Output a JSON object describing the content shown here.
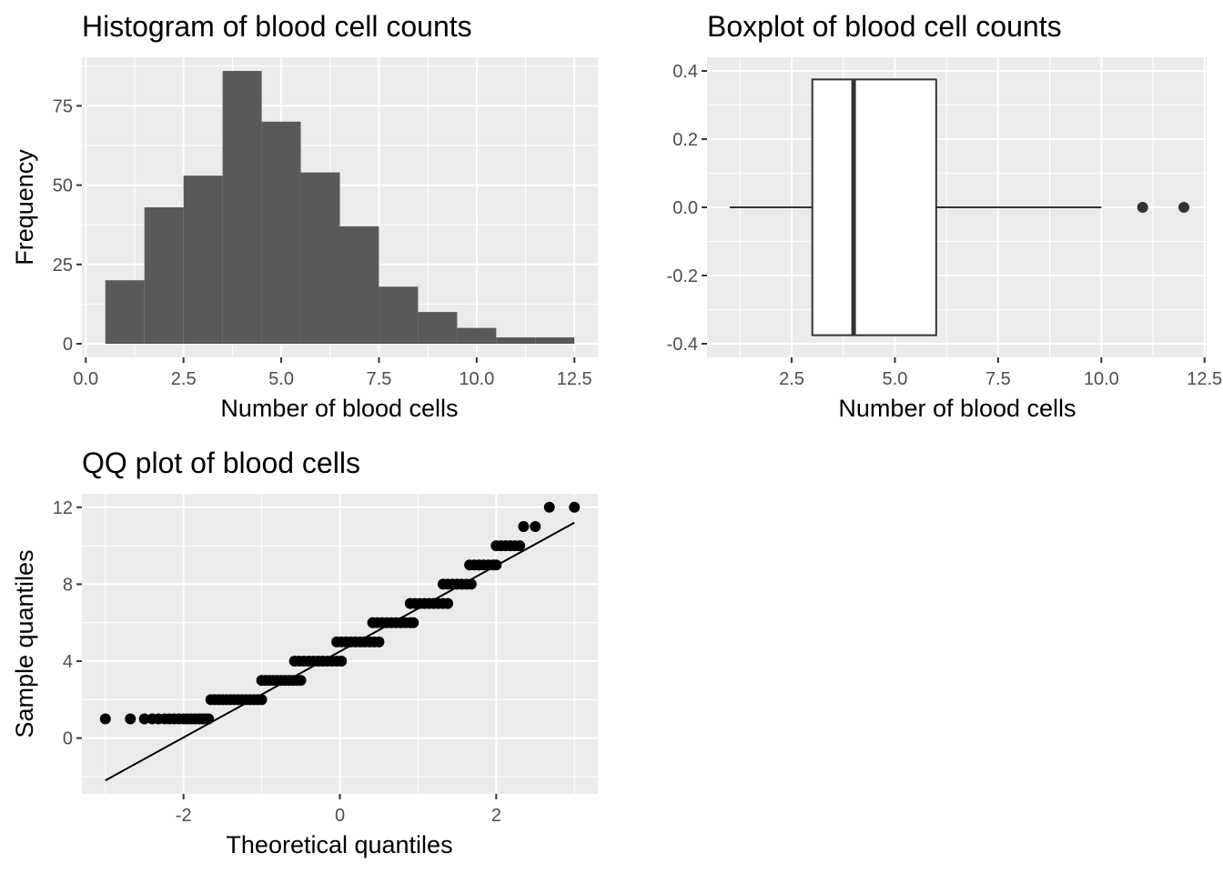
{
  "chart_data": [
    {
      "type": "bar",
      "title": "Histogram of blood cell counts",
      "xlabel": "Number of blood cells",
      "ylabel": "Frequency",
      "bins": [
        {
          "x0": 0.5,
          "x1": 1.5,
          "count": 20
        },
        {
          "x0": 1.5,
          "x1": 2.5,
          "count": 43
        },
        {
          "x0": 2.5,
          "x1": 3.5,
          "count": 53
        },
        {
          "x0": 3.5,
          "x1": 4.5,
          "count": 86
        },
        {
          "x0": 4.5,
          "x1": 5.5,
          "count": 70
        },
        {
          "x0": 5.5,
          "x1": 6.5,
          "count": 54
        },
        {
          "x0": 6.5,
          "x1": 7.5,
          "count": 37
        },
        {
          "x0": 7.5,
          "x1": 8.5,
          "count": 18
        },
        {
          "x0": 8.5,
          "x1": 9.5,
          "count": 10
        },
        {
          "x0": 9.5,
          "x1": 10.5,
          "count": 5
        },
        {
          "x0": 10.5,
          "x1": 11.5,
          "count": 2
        },
        {
          "x0": 11.5,
          "x1": 12.5,
          "count": 2
        }
      ],
      "xlim": [
        -0.1,
        13.1
      ],
      "ylim": [
        -4.3,
        90.3
      ],
      "xticks": [
        0.0,
        2.5,
        5.0,
        7.5,
        10.0,
        12.5
      ],
      "xtick_labels": [
        "0.0",
        "2.5",
        "5.0",
        "7.5",
        "10.0",
        "12.5"
      ],
      "yticks": [
        0,
        25,
        50,
        75
      ],
      "ytick_labels": [
        "0",
        "25",
        "50",
        "75"
      ],
      "bar_color": "#595959",
      "grid": true
    },
    {
      "type": "boxplot",
      "title": "Boxplot of blood cell counts",
      "xlabel": "Number of blood cells",
      "ylabel": "",
      "box": {
        "min": 1,
        "q1": 3,
        "median": 4,
        "q3": 6,
        "max": 10,
        "outliers": [
          11,
          12
        ]
      },
      "ylim": [
        -0.4,
        0.4
      ],
      "xlim": [
        0.45,
        12.55
      ],
      "xticks": [
        2.5,
        5.0,
        7.5,
        10.0,
        12.5
      ],
      "xtick_labels": [
        "2.5",
        "5.0",
        "7.5",
        "10.0",
        "12.5"
      ],
      "yticks": [
        -0.4,
        -0.2,
        0.0,
        0.2,
        0.4
      ],
      "ytick_labels": [
        "-0.4",
        "-0.2",
        "0.0",
        "0.2",
        "0.4"
      ],
      "grid": true
    },
    {
      "type": "scatter",
      "title": "QQ plot of blood cells",
      "xlabel": "Theoretical quantiles",
      "ylabel": "Sample quantiles",
      "points": [
        [
          -3.0,
          1
        ],
        [
          -2.68,
          1
        ],
        [
          -2.5,
          1
        ],
        [
          -2.4,
          1
        ],
        [
          -2.32,
          1
        ],
        [
          -2.24,
          1
        ],
        [
          -2.18,
          1
        ],
        [
          -2.12,
          1
        ],
        [
          -2.06,
          1
        ],
        [
          -2.0,
          1
        ],
        [
          -1.95,
          1
        ],
        [
          -1.9,
          1
        ],
        [
          -1.85,
          1
        ],
        [
          -1.8,
          1
        ],
        [
          -1.76,
          1
        ],
        [
          -1.72,
          1
        ],
        [
          -1.68,
          1
        ],
        [
          -1.65,
          2
        ],
        [
          -1.6,
          2
        ],
        [
          -1.55,
          2
        ],
        [
          -1.5,
          2
        ],
        [
          -1.45,
          2
        ],
        [
          -1.4,
          2
        ],
        [
          -1.35,
          2
        ],
        [
          -1.3,
          2
        ],
        [
          -1.25,
          2
        ],
        [
          -1.2,
          2
        ],
        [
          -1.15,
          2
        ],
        [
          -1.1,
          2
        ],
        [
          -1.05,
          2
        ],
        [
          -1.0,
          2
        ],
        [
          -1.0,
          3
        ],
        [
          -0.95,
          3
        ],
        [
          -0.9,
          3
        ],
        [
          -0.85,
          3
        ],
        [
          -0.8,
          3
        ],
        [
          -0.75,
          3
        ],
        [
          -0.7,
          3
        ],
        [
          -0.65,
          3
        ],
        [
          -0.6,
          3
        ],
        [
          -0.55,
          3
        ],
        [
          -0.5,
          3
        ],
        [
          -0.58,
          4
        ],
        [
          -0.52,
          4
        ],
        [
          -0.46,
          4
        ],
        [
          -0.4,
          4
        ],
        [
          -0.34,
          4
        ],
        [
          -0.28,
          4
        ],
        [
          -0.22,
          4
        ],
        [
          -0.16,
          4
        ],
        [
          -0.1,
          4
        ],
        [
          -0.04,
          4
        ],
        [
          0.02,
          4
        ],
        [
          -0.04,
          5
        ],
        [
          0.02,
          5
        ],
        [
          0.08,
          5
        ],
        [
          0.14,
          5
        ],
        [
          0.2,
          5
        ],
        [
          0.26,
          5
        ],
        [
          0.32,
          5
        ],
        [
          0.38,
          5
        ],
        [
          0.44,
          5
        ],
        [
          0.5,
          5
        ],
        [
          0.42,
          6
        ],
        [
          0.48,
          6
        ],
        [
          0.54,
          6
        ],
        [
          0.6,
          6
        ],
        [
          0.66,
          6
        ],
        [
          0.72,
          6
        ],
        [
          0.78,
          6
        ],
        [
          0.84,
          6
        ],
        [
          0.9,
          6
        ],
        [
          0.94,
          6
        ],
        [
          0.9,
          7
        ],
        [
          0.96,
          7
        ],
        [
          1.02,
          7
        ],
        [
          1.08,
          7
        ],
        [
          1.14,
          7
        ],
        [
          1.2,
          7
        ],
        [
          1.26,
          7
        ],
        [
          1.32,
          7
        ],
        [
          1.38,
          7
        ],
        [
          1.32,
          8
        ],
        [
          1.38,
          8
        ],
        [
          1.44,
          8
        ],
        [
          1.5,
          8
        ],
        [
          1.56,
          8
        ],
        [
          1.62,
          8
        ],
        [
          1.68,
          8
        ],
        [
          1.66,
          9
        ],
        [
          1.72,
          9
        ],
        [
          1.78,
          9
        ],
        [
          1.84,
          9
        ],
        [
          1.9,
          9
        ],
        [
          1.96,
          9
        ],
        [
          2.0,
          9
        ],
        [
          2.0,
          10
        ],
        [
          2.06,
          10
        ],
        [
          2.12,
          10
        ],
        [
          2.18,
          10
        ],
        [
          2.24,
          10
        ],
        [
          2.3,
          10
        ],
        [
          2.35,
          11
        ],
        [
          2.5,
          11
        ],
        [
          2.68,
          12
        ],
        [
          3.0,
          12
        ]
      ],
      "reference_line": {
        "x": [
          -3.0,
          3.0
        ],
        "y": [
          -2.2,
          11.2
        ]
      },
      "xlim": [
        -3.3,
        3.3
      ],
      "ylim": [
        -2.9,
        12.7
      ],
      "xticks": [
        -2,
        0,
        2
      ],
      "xtick_labels": [
        "-2",
        "0",
        "2"
      ],
      "yticks": [
        0,
        4,
        8,
        12
      ],
      "ytick_labels": [
        "0",
        "4",
        "8",
        "12"
      ],
      "grid": true
    }
  ]
}
